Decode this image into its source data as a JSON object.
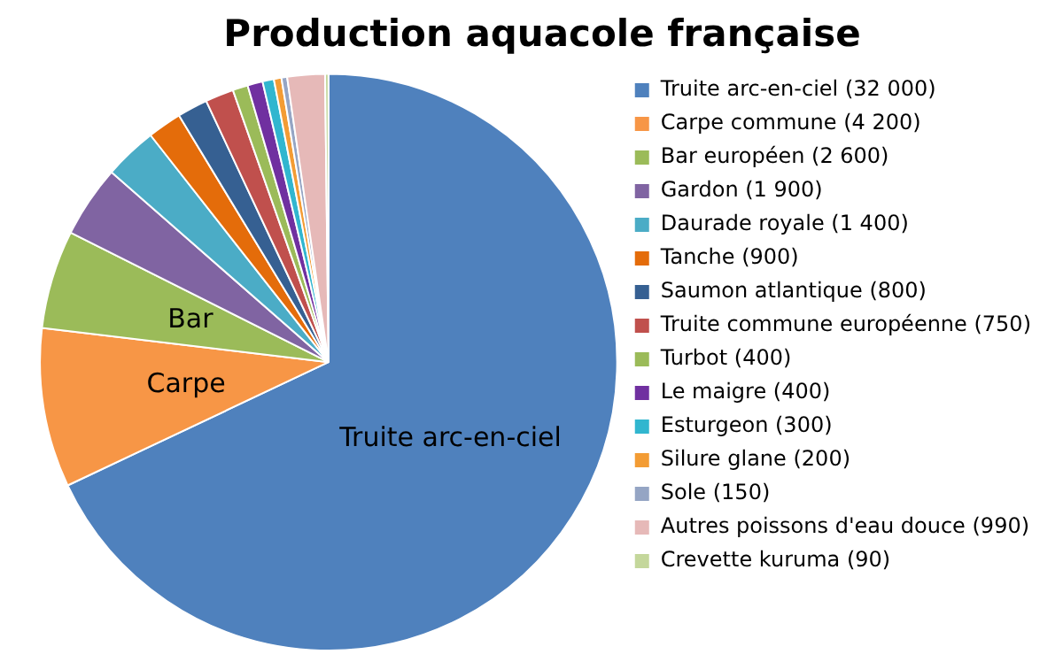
{
  "chart_data": {
    "type": "pie",
    "title": "Production aquacole française",
    "categories": [
      "Truite arc-en-ciel (32 000)",
      "Carpe commune (4 200)",
      "Bar européen (2 600)",
      "Gardon (1 900)",
      "Daurade royale (1 400)",
      "Tanche (900)",
      "Saumon atlantique (800)",
      "Truite commune européenne (750)",
      "Turbot (400)",
      "Le maigre (400)",
      "Esturgeon (300)",
      "Silure glane (200)",
      "Sole (150)",
      "Autres poissons d'eau douce (990)",
      "Crevette kuruma (90)"
    ],
    "values": [
      32000,
      4200,
      2600,
      1900,
      1400,
      900,
      800,
      750,
      400,
      400,
      300,
      200,
      150,
      990,
      90
    ],
    "colors": [
      "#4f81bd",
      "#f79646",
      "#9bbb59",
      "#8064a2",
      "#4bacc6",
      "#e46c0a",
      "#366092",
      "#c0504d",
      "#9bbb59",
      "#7030a0",
      "#31b6cf",
      "#f39c34",
      "#95a5c4",
      "#e6b9b8",
      "#c4d79b"
    ],
    "value_labels": [
      "Truite arc-en-ciel",
      "Carpe",
      "Bar",
      null,
      null,
      null,
      null,
      null,
      null,
      null,
      null,
      null,
      null,
      null,
      null
    ],
    "legend": "right"
  }
}
